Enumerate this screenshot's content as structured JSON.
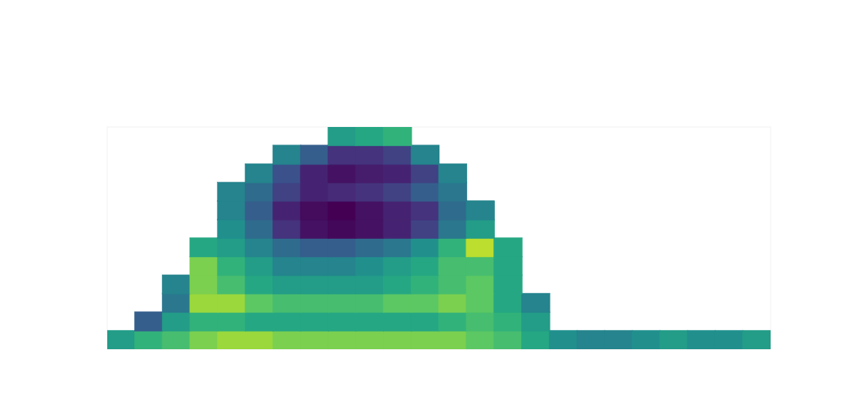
{
  "chart_data": {
    "type": "heatmap",
    "xlim": [
      0,
      24
    ],
    "ylim": [
      0,
      12
    ],
    "zlim": [
      0,
      1
    ],
    "tick_labels": false,
    "z": [
      [
        0.55,
        0.65,
        0.7,
        0.8,
        0.85,
        0.85,
        0.8,
        0.8,
        0.8,
        0.8,
        0.8,
        0.8,
        0.8,
        0.75,
        0.7,
        0.6,
        0.5,
        0.45,
        0.45,
        0.5,
        0.55,
        0.5,
        0.5,
        0.55
      ],
      [
        null,
        0.3,
        0.55,
        0.65,
        0.65,
        0.6,
        0.6,
        0.6,
        0.6,
        0.6,
        0.6,
        0.6,
        0.65,
        0.7,
        0.65,
        0.55,
        null,
        null,
        null,
        null,
        null,
        null,
        null,
        null
      ],
      [
        null,
        null,
        0.4,
        0.85,
        0.85,
        0.75,
        0.7,
        0.7,
        0.7,
        0.7,
        0.75,
        0.75,
        0.8,
        0.75,
        0.6,
        0.45,
        null,
        null,
        null,
        null,
        null,
        null,
        null,
        null
      ],
      [
        null,
        null,
        0.45,
        0.8,
        0.7,
        0.6,
        0.55,
        0.55,
        0.55,
        0.55,
        0.6,
        0.65,
        0.7,
        0.75,
        0.6,
        null,
        null,
        null,
        null,
        null,
        null,
        null,
        null,
        null
      ],
      [
        null,
        null,
        null,
        0.8,
        0.65,
        0.55,
        0.45,
        0.45,
        0.45,
        0.5,
        0.55,
        0.6,
        0.7,
        0.7,
        0.6,
        null,
        null,
        null,
        null,
        null,
        null,
        null,
        null,
        null
      ],
      [
        null,
        null,
        null,
        0.6,
        0.55,
        0.45,
        0.35,
        0.3,
        0.3,
        0.35,
        0.4,
        0.5,
        0.65,
        0.9,
        0.6,
        null,
        null,
        null,
        null,
        null,
        null,
        null,
        null,
        null
      ],
      [
        null,
        null,
        null,
        null,
        0.5,
        0.35,
        0.15,
        0.05,
        0.02,
        0.05,
        0.1,
        0.2,
        0.4,
        0.55,
        null,
        null,
        null,
        null,
        null,
        null,
        null,
        null,
        null,
        null
      ],
      [
        null,
        null,
        null,
        null,
        0.45,
        0.3,
        0.1,
        0.03,
        0,
        0.05,
        0.1,
        0.15,
        0.35,
        0.45,
        null,
        null,
        null,
        null,
        null,
        null,
        null,
        null,
        null,
        null
      ],
      [
        null,
        null,
        null,
        null,
        0.45,
        0.35,
        0.2,
        0.1,
        0.12,
        0.15,
        0.2,
        0.3,
        0.4,
        null,
        null,
        null,
        null,
        null,
        null,
        null,
        null,
        null,
        null,
        null
      ],
      [
        null,
        null,
        null,
        null,
        null,
        0.45,
        0.25,
        0.1,
        0.05,
        0.08,
        0.1,
        0.2,
        0.45,
        null,
        null,
        null,
        null,
        null,
        null,
        null,
        null,
        null,
        null,
        null
      ],
      [
        null,
        null,
        null,
        null,
        null,
        null,
        0.45,
        0.3,
        0.15,
        0.15,
        0.2,
        0.45,
        null,
        null,
        null,
        null,
        null,
        null,
        null,
        null,
        null,
        null,
        null,
        null
      ],
      [
        null,
        null,
        null,
        null,
        null,
        null,
        null,
        null,
        0.55,
        0.6,
        0.65,
        null,
        null,
        null,
        null,
        null,
        null,
        null,
        null,
        null,
        null,
        null,
        null,
        null
      ]
    ]
  }
}
